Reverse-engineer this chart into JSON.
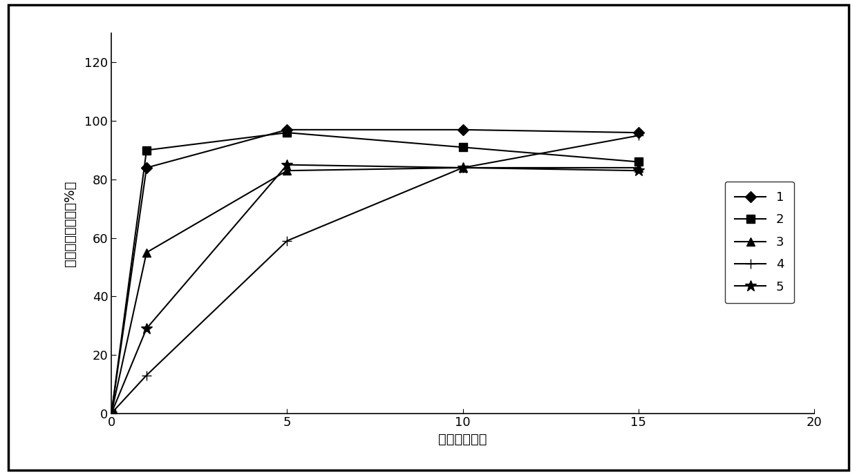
{
  "series": [
    {
      "label": "1",
      "marker": "D",
      "x": [
        0,
        1,
        5,
        10,
        15
      ],
      "y": [
        0,
        84,
        97,
        97,
        96
      ]
    },
    {
      "label": "2",
      "marker": "s",
      "x": [
        0,
        1,
        5,
        10,
        15
      ],
      "y": [
        0,
        90,
        96,
        91,
        86
      ]
    },
    {
      "label": "3",
      "marker": "^",
      "x": [
        0,
        1,
        5,
        10,
        15
      ],
      "y": [
        0,
        55,
        83,
        84,
        84
      ]
    },
    {
      "label": "4",
      "marker": "P",
      "x": [
        0,
        1,
        5,
        10,
        15
      ],
      "y": [
        0,
        13,
        59,
        84,
        95
      ]
    },
    {
      "label": "5",
      "marker": "*",
      "x": [
        0,
        1,
        5,
        10,
        15
      ],
      "y": [
        0,
        29,
        85,
        84,
        83
      ]
    }
  ],
  "xlabel": "时间（分钟）",
  "ylabel": "阿莫西林溶出度（%）",
  "xlim": [
    0,
    20
  ],
  "ylim": [
    0,
    130
  ],
  "xticks": [
    0,
    5,
    10,
    15,
    20
  ],
  "yticks": [
    0,
    20,
    40,
    60,
    80,
    100,
    120
  ],
  "line_color": "#000000",
  "background_color": "#ffffff",
  "marker_size_default": 8,
  "linewidth": 1.5,
  "figure_border": true
}
